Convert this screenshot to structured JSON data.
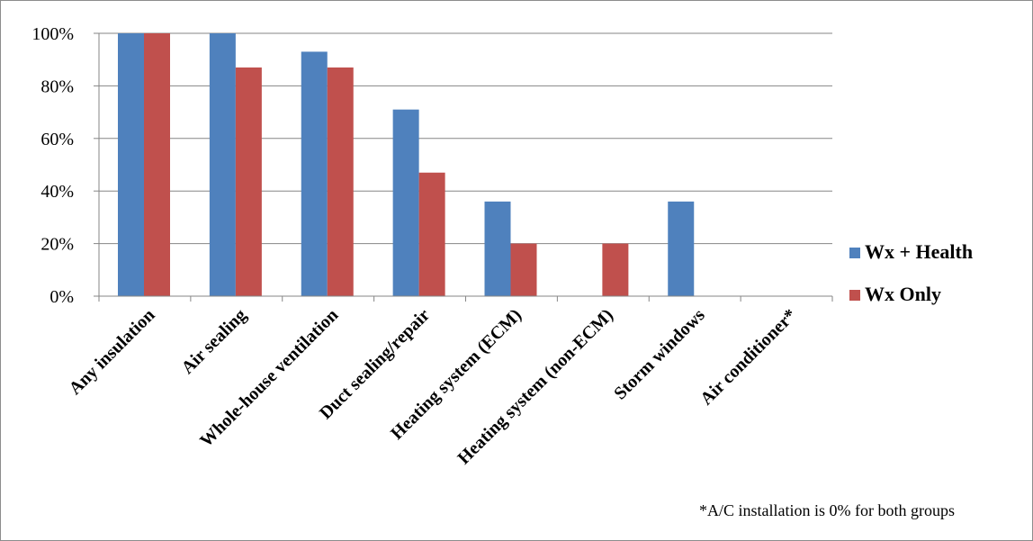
{
  "chart_data": {
    "type": "bar",
    "categories": [
      "Any insulation",
      "Air sealing",
      "Whole-house ventilation",
      "Duct sealing/repair",
      "Heating system (ECM)",
      "Heating system (non-ECM)",
      "Storm windows",
      "Air conditioner*"
    ],
    "series": [
      {
        "name": "Wx + Health",
        "color": "#4f81bd",
        "values": [
          100,
          100,
          93,
          71,
          36,
          0,
          36,
          0
        ]
      },
      {
        "name": "Wx Only",
        "color": "#c0504d",
        "values": [
          100,
          87,
          87,
          47,
          20,
          20,
          0,
          0
        ]
      }
    ],
    "yticks": [
      "0%",
      "20%",
      "40%",
      "60%",
      "80%",
      "100%"
    ],
    "ylim": [
      0,
      100
    ],
    "grid": true,
    "legend_position": "right",
    "footnote": "*A/C installation is 0% for both groups"
  }
}
